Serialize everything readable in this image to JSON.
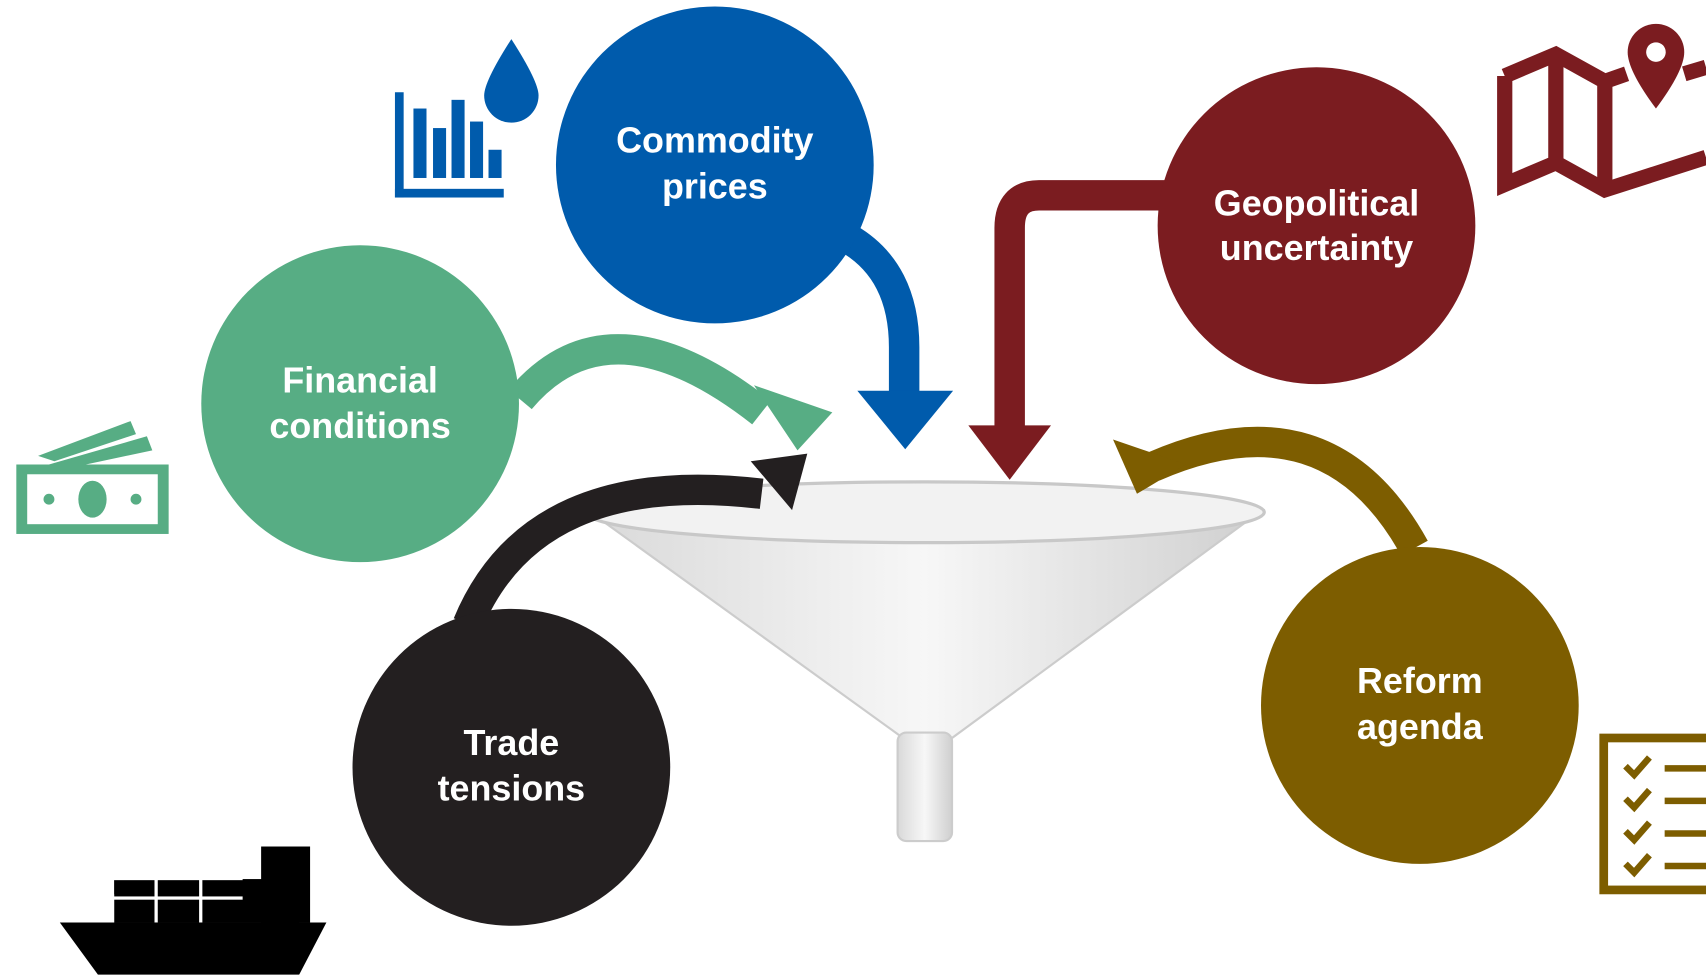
{
  "nodes": [
    {
      "lines": [
        "Commodity",
        "prices"
      ]
    },
    {
      "lines": [
        "Geopolitical",
        "uncertainty"
      ]
    },
    {
      "lines": [
        "Financial",
        "conditions"
      ]
    },
    {
      "lines": [
        "Trade",
        "tensions"
      ]
    },
    {
      "lines": [
        "Reform",
        "agenda"
      ]
    }
  ]
}
